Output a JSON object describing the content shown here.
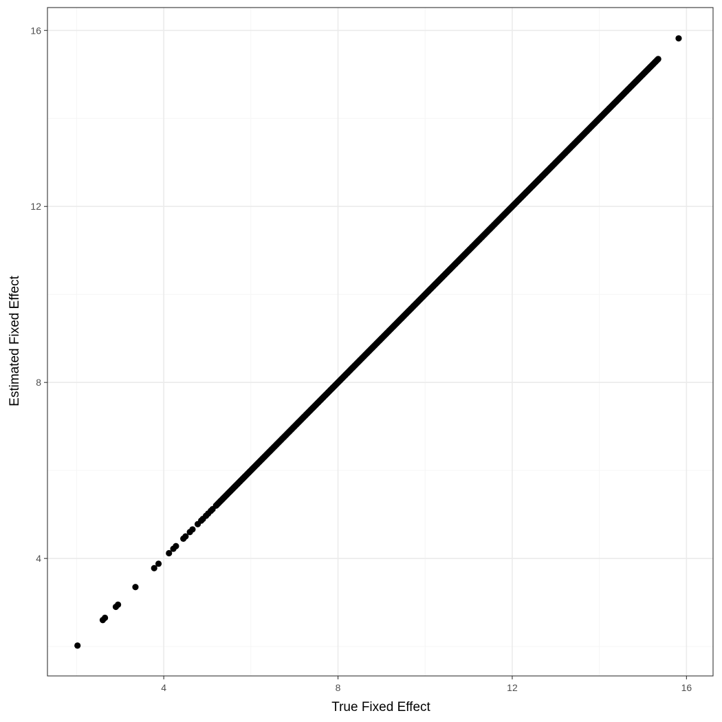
{
  "chart_data": {
    "type": "scatter",
    "title": "",
    "xlabel": "True Fixed Effect",
    "ylabel": "Estimated Fixed Effect",
    "xlim": [
      1.33,
      16.61
    ],
    "ylim": [
      1.33,
      16.52
    ],
    "x_ticks": [
      4,
      8,
      12,
      16
    ],
    "y_ticks": [
      4,
      8,
      12,
      16
    ],
    "x_tick_labels": [
      "4",
      "8",
      "12",
      "16"
    ],
    "y_tick_labels": [
      "4",
      "8",
      "12",
      "16"
    ],
    "x_minor": [
      2,
      6,
      10,
      14
    ],
    "y_minor": [
      2,
      6,
      10,
      14
    ],
    "grid": true,
    "legend": "none",
    "colors": {
      "points": "#000000",
      "panel_border": "#333333",
      "grid_major": "#ebebeb",
      "grid_minor": "#f5f5f5",
      "background": "#ffffff"
    },
    "sparse_points": [
      [
        2.02,
        2.02
      ],
      [
        2.6,
        2.6
      ],
      [
        2.65,
        2.65
      ],
      [
        2.9,
        2.9
      ],
      [
        2.95,
        2.95
      ],
      [
        3.35,
        3.35
      ],
      [
        3.78,
        3.78
      ],
      [
        3.88,
        3.88
      ],
      [
        4.12,
        4.12
      ],
      [
        4.22,
        4.22
      ],
      [
        4.28,
        4.28
      ],
      [
        4.45,
        4.45
      ],
      [
        4.5,
        4.5
      ],
      [
        4.6,
        4.6
      ],
      [
        4.66,
        4.66
      ],
      [
        4.78,
        4.78
      ],
      [
        4.86,
        4.86
      ],
      [
        4.9,
        4.9
      ],
      [
        4.97,
        4.97
      ],
      [
        5.02,
        5.02
      ],
      [
        5.08,
        5.08
      ],
      [
        5.12,
        5.12
      ],
      [
        15.82,
        15.82
      ]
    ],
    "dense_segment": {
      "from": 5.2,
      "to": 15.35,
      "count": 560,
      "relation": "y = x"
    }
  }
}
